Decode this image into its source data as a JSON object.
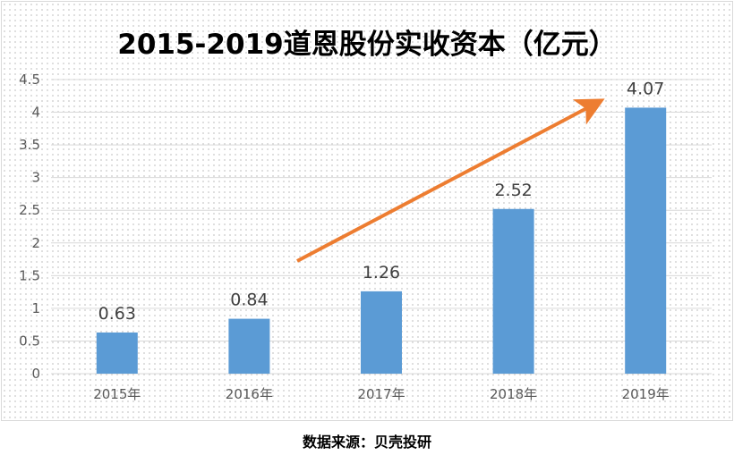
{
  "chart_data": {
    "type": "bar",
    "title": "2015-2019道恩股份实收资本（亿元）",
    "categories": [
      "2015年",
      "2016年",
      "2017年",
      "2018年",
      "2019年"
    ],
    "values": [
      0.63,
      0.84,
      1.26,
      2.52,
      4.07
    ],
    "value_labels": [
      "0.63",
      "0.84",
      "1.26",
      "2.52",
      "4.07"
    ],
    "yticks": [
      "0",
      "0.5",
      "1",
      "1.5",
      "2",
      "2.5",
      "3",
      "3.5",
      "4",
      "4.5"
    ],
    "ylim": [
      0,
      4.5
    ],
    "grid": true,
    "legend": false,
    "bar_color": "#5b9bd5",
    "trend_arrow_color": "#ed7d31"
  },
  "source": "数据来源：贝壳投研"
}
